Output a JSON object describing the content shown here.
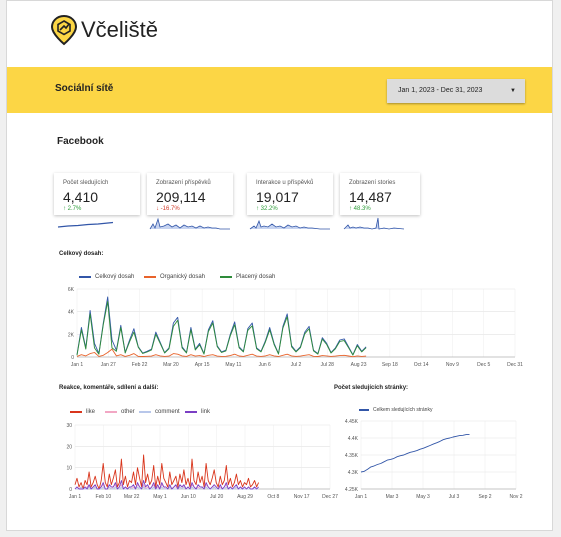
{
  "brand": {
    "name": "Včeliště"
  },
  "banner": {
    "title": "Sociální sítě",
    "date_range": "Jan 1, 2023 - Dec 31, 2023"
  },
  "section_title": "Facebook",
  "kpis": [
    {
      "label": "Počet sledujících",
      "value": "4,410",
      "change": "2.7%",
      "direction": "up"
    },
    {
      "label": "Zobrazení příspěvků",
      "value": "209,114",
      "change": "-16.7%",
      "direction": "down"
    },
    {
      "label": "Interakce u příspěvků",
      "value": "19,017",
      "change": "32.2%",
      "direction": "up"
    },
    {
      "label": "Zobrazení stories",
      "value": "14,487",
      "change": "48.3%",
      "direction": "up"
    }
  ],
  "colors": {
    "accent": "#fcd645",
    "blue": "#3256a8",
    "orange": "#e8632b",
    "green": "#2e8b3a",
    "red": "#d9351c",
    "pink": "#f2a7c4",
    "lightblue": "#b8c7ea",
    "purple": "#7b3fc4"
  },
  "chart_data": [
    {
      "type": "line",
      "title": "Celkový dosah:",
      "x_ticks": [
        "Jan 1",
        "Jan 27",
        "Feb 22",
        "Mar 20",
        "Apr 15",
        "May 11",
        "Jun 6",
        "Jul 2",
        "Jul 28",
        "Aug 23",
        "Sep 18",
        "Oct 14",
        "Nov 9",
        "Dec 5",
        "Dec 31"
      ],
      "y_ticks": [
        "0",
        "2K",
        "4K",
        "6K"
      ],
      "ylim": [
        0,
        6000
      ],
      "series": [
        {
          "name": "Celkový dosah",
          "color": "#3256a8",
          "values": [
            200,
            2600,
            800,
            4100,
            1200,
            300,
            3000,
            5300,
            1500,
            600,
            2800,
            400,
            1500,
            2500,
            900,
            350,
            500,
            700,
            2200,
            1300,
            400,
            800,
            3000,
            3500,
            900,
            400,
            2600,
            700,
            1200,
            300,
            2400,
            3200,
            1000,
            450,
            600,
            2000,
            3100,
            900,
            500,
            2500,
            3000,
            800,
            500,
            1400,
            2600,
            1200,
            300,
            2700,
            3800,
            1000,
            500,
            900,
            2200,
            2700,
            600,
            300,
            1700,
            1200,
            400,
            800,
            1500,
            1600,
            900,
            200,
            1100,
            500,
            900
          ]
        },
        {
          "name": "Organický dosah",
          "color": "#e8632b",
          "values": [
            50,
            200,
            100,
            300,
            400,
            50,
            150,
            400,
            700,
            100,
            200,
            50,
            150,
            300,
            50,
            40,
            60,
            80,
            200,
            100,
            50,
            80,
            300,
            250,
            100,
            50,
            200,
            80,
            120,
            40,
            150,
            200,
            80,
            50,
            60,
            120,
            250,
            90,
            50,
            150,
            250,
            80,
            50,
            100,
            200,
            100,
            40,
            150,
            250,
            100,
            50,
            80,
            150,
            200,
            60,
            40,
            120,
            100,
            50,
            80,
            120,
            150,
            90,
            30,
            100,
            50,
            80
          ]
        },
        {
          "name": "Placený dosah",
          "color": "#2e8b3a",
          "values": [
            150,
            2400,
            700,
            3800,
            800,
            250,
            2850,
            4900,
            800,
            500,
            2600,
            350,
            1350,
            2200,
            850,
            310,
            440,
            620,
            2000,
            1200,
            350,
            720,
            2700,
            3250,
            800,
            350,
            2400,
            620,
            1080,
            260,
            2250,
            3000,
            920,
            400,
            540,
            1880,
            2850,
            810,
            450,
            2350,
            2750,
            720,
            450,
            1300,
            2400,
            1100,
            260,
            2550,
            3550,
            900,
            450,
            820,
            2050,
            2500,
            540,
            260,
            1580,
            1100,
            350,
            720,
            1380,
            1450,
            810,
            170,
            1000,
            450,
            820
          ]
        }
      ]
    },
    {
      "type": "line",
      "title": "Reakce, komentáře, sdílení a další:",
      "x_ticks": [
        "Jan 1",
        "Feb 10",
        "Mar 22",
        "May 1",
        "Jun 10",
        "Jul 20",
        "Aug 29",
        "Oct 8",
        "Nov 17",
        "Dec 27"
      ],
      "y_ticks": [
        "0",
        "10",
        "20",
        "30"
      ],
      "ylim": [
        0,
        30
      ],
      "series": [
        {
          "name": "like",
          "color": "#d9351c",
          "values": [
            2,
            5,
            1,
            3,
            0,
            4,
            2,
            8,
            1,
            3,
            6,
            2,
            0,
            4,
            12,
            3,
            1,
            7,
            2,
            5,
            9,
            1,
            3,
            14,
            2,
            6,
            1,
            4,
            3,
            8,
            2,
            10,
            5,
            1,
            16,
            3,
            7,
            2,
            4,
            11,
            1,
            6,
            2,
            12,
            5,
            3,
            1,
            8,
            2,
            4,
            6,
            1,
            7,
            3,
            9,
            2,
            5,
            1,
            14,
            4,
            2,
            8,
            3,
            6,
            1,
            12,
            4,
            2,
            5,
            9,
            3,
            1,
            6,
            2,
            4,
            11,
            2,
            5,
            1,
            3,
            7,
            2,
            4,
            1,
            3,
            2,
            5,
            1,
            2,
            4,
            1,
            3
          ]
        },
        {
          "name": "other",
          "color": "#f2a7c4",
          "values": [
            0,
            1,
            0,
            1,
            0,
            0,
            1,
            2,
            0,
            1,
            1,
            0,
            0,
            1,
            2,
            0,
            0,
            1,
            0,
            1,
            2,
            0,
            1,
            2,
            0,
            1,
            0,
            1,
            0,
            1,
            0,
            2,
            1,
            0,
            2,
            0,
            1,
            0,
            1,
            2,
            0,
            1,
            0,
            2,
            1,
            0,
            0,
            1,
            0,
            1,
            1,
            0,
            1,
            0,
            2,
            0,
            1,
            0,
            2,
            1,
            0,
            1,
            0,
            1,
            0,
            2,
            1,
            0,
            1,
            1,
            0,
            0,
            1,
            0,
            1,
            2,
            0,
            1,
            0,
            0,
            1,
            0,
            1,
            0,
            0,
            0,
            1,
            0,
            0,
            1,
            0,
            0
          ]
        },
        {
          "name": "comment",
          "color": "#b8c7ea",
          "values": [
            0,
            0,
            0,
            1,
            0,
            0,
            0,
            1,
            0,
            0,
            1,
            0,
            0,
            0,
            1,
            0,
            0,
            1,
            0,
            0,
            1,
            0,
            0,
            1,
            0,
            0,
            0,
            1,
            0,
            0,
            0,
            1,
            0,
            0,
            1,
            0,
            0,
            0,
            0,
            1,
            0,
            0,
            0,
            1,
            0,
            0,
            0,
            1,
            0,
            0,
            0,
            0,
            1,
            0,
            1,
            0,
            0,
            0,
            1,
            0,
            0,
            0,
            0,
            1,
            0,
            1,
            0,
            0,
            0,
            1,
            0,
            0,
            0,
            0,
            0,
            1,
            0,
            0,
            0,
            0,
            1,
            0,
            0,
            0,
            0,
            0,
            0,
            0,
            0,
            0,
            0,
            0
          ]
        },
        {
          "name": "link",
          "color": "#7b3fc4",
          "values": [
            0,
            1,
            0,
            0,
            0,
            1,
            0,
            2,
            0,
            1,
            2,
            0,
            0,
            1,
            3,
            0,
            0,
            2,
            1,
            1,
            3,
            0,
            1,
            4,
            0,
            1,
            0,
            1,
            1,
            2,
            0,
            3,
            1,
            0,
            4,
            1,
            2,
            0,
            1,
            3,
            0,
            2,
            0,
            3,
            1,
            1,
            0,
            2,
            0,
            1,
            2,
            0,
            2,
            1,
            2,
            0,
            1,
            0,
            3,
            1,
            0,
            2,
            1,
            1,
            0,
            3,
            1,
            0,
            1,
            2,
            1,
            0,
            2,
            0,
            1,
            3,
            0,
            1,
            0,
            1,
            2,
            0,
            1,
            0,
            1,
            0,
            1,
            0,
            0,
            1,
            0,
            1
          ]
        }
      ]
    },
    {
      "type": "line",
      "title": "Počet sledujících stránky:",
      "x_ticks": [
        "Jan 1",
        "Mar 3",
        "May 3",
        "Jul 3",
        "Sep 2",
        "Nov 2"
      ],
      "y_ticks": [
        "4.25K",
        "4.3K",
        "4.35K",
        "4.4K",
        "4.45K"
      ],
      "ylim": [
        4250,
        4450
      ],
      "series": [
        {
          "name": "Celkem sledujících stránky",
          "color": "#3256a8",
          "values": [
            4300,
            4302,
            4308,
            4315,
            4318,
            4322,
            4325,
            4330,
            4335,
            4337,
            4340,
            4345,
            4348,
            4350,
            4354,
            4358,
            4360,
            4363,
            4367,
            4370,
            4374,
            4378,
            4382,
            4386,
            4390,
            4395,
            4398,
            4400,
            4403,
            4405,
            4407,
            4408,
            4410,
            4410
          ]
        }
      ]
    }
  ]
}
